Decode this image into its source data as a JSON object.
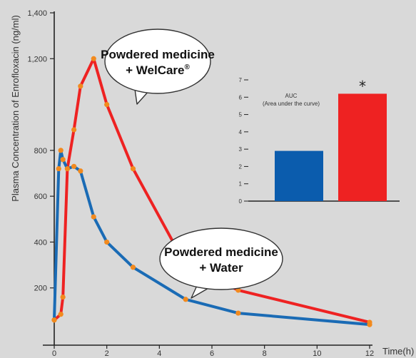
{
  "chart_data": [
    {
      "type": "line",
      "ylabel": "Plasma Concentration of Enrofloxacin (ng/ml)",
      "xlabel": "Time(h)",
      "xlim": [
        0,
        12
      ],
      "ylim": [
        0,
        1400
      ],
      "x_ticks": [
        "0",
        "2",
        "4",
        "6",
        "8",
        "10",
        "12"
      ],
      "y_ticks": [
        "200",
        "400",
        "600",
        "800",
        "1,200",
        "1,400"
      ],
      "y_tick_values": [
        200,
        400,
        600,
        800,
        1200,
        1400
      ],
      "series": [
        {
          "color": "#ee2222",
          "x": [
            0,
            0.25,
            0.33,
            0.5,
            0.75,
            1.0,
            1.5,
            2.0,
            3.0,
            5.0,
            7.0,
            12.0
          ],
          "y": [
            60,
            85,
            160,
            720,
            890,
            1080,
            1200,
            1000,
            720,
            300,
            190,
            50
          ]
        },
        {
          "color": "#1a6bb5",
          "x": [
            0,
            0.17,
            0.25,
            0.33,
            0.5,
            0.75,
            1.0,
            1.5,
            2.0,
            3.0,
            5.0,
            7.0,
            12.0
          ],
          "y": [
            60,
            720,
            800,
            760,
            720,
            730,
            710,
            510,
            400,
            290,
            150,
            90,
            40
          ]
        }
      ],
      "annotations": [
        {
          "lines": [
            "Powdered medicine",
            "+ WelCare®"
          ],
          "target_series": 0
        },
        {
          "lines": [
            "Powdered medicine",
            "+ Water"
          ],
          "target_series": 1
        }
      ]
    },
    {
      "type": "bar",
      "title_lines": [
        "AUC",
        "(Area under the curve)"
      ],
      "ylim": [
        0,
        7
      ],
      "y_ticks": [
        "0",
        "1",
        "2",
        "3",
        "4",
        "5",
        "6",
        "7"
      ],
      "y_tick_values": [
        0,
        1,
        2,
        3,
        4,
        5,
        6,
        7
      ],
      "values": [
        2.9,
        6.2
      ],
      "colors": [
        "#0b5cad",
        "#ee2222"
      ],
      "significance_marker": "*"
    }
  ]
}
